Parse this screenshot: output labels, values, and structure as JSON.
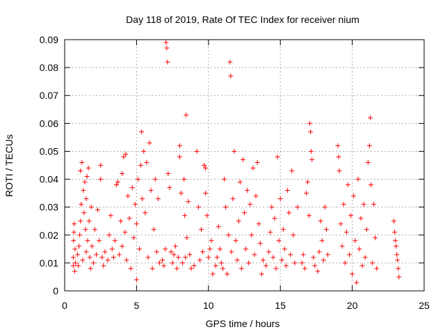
{
  "chart_data": {
    "type": "scatter",
    "title": "Day 118 of 2019, Rate Of TEC Index for receiver nium",
    "xlabel": "GPS time / hours",
    "ylabel": "ROTI / TECUs",
    "xlim": [
      0,
      25
    ],
    "ylim": [
      0,
      0.09
    ],
    "xticks": [
      0,
      5,
      10,
      15,
      20,
      25
    ],
    "xtick_labels": [
      "0",
      "5",
      "10",
      "15",
      "20",
      "25"
    ],
    "yticks": [
      0,
      0.01,
      0.02,
      0.03,
      0.04,
      0.05,
      0.06,
      0.07,
      0.08,
      0.09
    ],
    "ytick_labels": [
      "0",
      "0.01",
      "0.02",
      "0.03",
      "0.04",
      "0.05",
      "0.06",
      "0.07",
      "0.08",
      "0.09"
    ],
    "grid": true,
    "marker": "+",
    "color": "#ff0000",
    "points": [
      [
        0.6,
        0.009
      ],
      [
        0.6,
        0.012
      ],
      [
        0.62,
        0.018
      ],
      [
        0.64,
        0.021
      ],
      [
        0.66,
        0.024
      ],
      [
        0.7,
        0.007
      ],
      [
        0.72,
        0.015
      ],
      [
        0.75,
        0.01
      ],
      [
        0.9,
        0.013
      ],
      [
        0.95,
        0.009
      ],
      [
        1.0,
        0.016
      ],
      [
        1.05,
        0.02
      ],
      [
        1.1,
        0.025
      ],
      [
        1.1,
        0.043
      ],
      [
        1.15,
        0.031
      ],
      [
        1.2,
        0.046
      ],
      [
        1.25,
        0.011
      ],
      [
        1.3,
        0.036
      ],
      [
        1.35,
        0.028
      ],
      [
        1.4,
        0.039
      ],
      [
        1.45,
        0.022
      ],
      [
        1.5,
        0.033
      ],
      [
        1.5,
        0.014
      ],
      [
        1.55,
        0.041
      ],
      [
        1.6,
        0.018
      ],
      [
        1.65,
        0.044
      ],
      [
        1.7,
        0.025
      ],
      [
        1.75,
        0.012
      ],
      [
        1.8,
        0.008
      ],
      [
        1.85,
        0.03
      ],
      [
        1.9,
        0.016
      ],
      [
        2.0,
        0.01
      ],
      [
        2.1,
        0.022
      ],
      [
        2.2,
        0.013
      ],
      [
        2.3,
        0.029
      ],
      [
        2.4,
        0.018
      ],
      [
        2.5,
        0.04
      ],
      [
        2.5,
        0.045
      ],
      [
        2.6,
        0.012
      ],
      [
        2.7,
        0.009
      ],
      [
        2.8,
        0.014
      ],
      [
        3.0,
        0.011
      ],
      [
        3.1,
        0.02
      ],
      [
        3.2,
        0.027
      ],
      [
        3.3,
        0.015
      ],
      [
        3.4,
        0.012
      ],
      [
        3.5,
        0.018
      ],
      [
        3.6,
        0.038
      ],
      [
        3.7,
        0.039
      ],
      [
        3.8,
        0.013
      ],
      [
        3.9,
        0.025
      ],
      [
        4.0,
        0.042
      ],
      [
        4.0,
        0.016
      ],
      [
        4.1,
        0.048
      ],
      [
        4.2,
        0.021
      ],
      [
        4.25,
        0.049
      ],
      [
        4.3,
        0.011
      ],
      [
        4.4,
        0.034
      ],
      [
        4.5,
        0.026
      ],
      [
        4.6,
        0.008
      ],
      [
        4.7,
        0.037
      ],
      [
        4.8,
        0.019
      ],
      [
        4.9,
        0.031
      ],
      [
        5.0,
        0.004
      ],
      [
        5.0,
        0.024
      ],
      [
        5.1,
        0.04
      ],
      [
        5.2,
        0.015
      ],
      [
        5.3,
        0.045
      ],
      [
        5.35,
        0.057
      ],
      [
        5.4,
        0.033
      ],
      [
        5.5,
        0.05
      ],
      [
        5.6,
        0.028
      ],
      [
        5.7,
        0.046
      ],
      [
        5.8,
        0.012
      ],
      [
        5.9,
        0.053
      ],
      [
        6.0,
        0.036
      ],
      [
        6.1,
        0.008
      ],
      [
        6.2,
        0.022
      ],
      [
        6.3,
        0.04
      ],
      [
        6.4,
        0.014
      ],
      [
        6.5,
        0.033
      ],
      [
        6.6,
        0.01
      ],
      [
        6.8,
        0.011
      ],
      [
        6.9,
        0.009
      ],
      [
        7.0,
        0.015
      ],
      [
        7.05,
        0.089
      ],
      [
        7.1,
        0.087
      ],
      [
        7.15,
        0.082
      ],
      [
        7.2,
        0.042
      ],
      [
        7.3,
        0.037
      ],
      [
        7.4,
        0.014
      ],
      [
        7.5,
        0.01
      ],
      [
        7.6,
        0.013
      ],
      [
        7.7,
        0.016
      ],
      [
        7.8,
        0.008
      ],
      [
        7.9,
        0.012
      ],
      [
        8.0,
        0.048
      ],
      [
        8.0,
        0.052
      ],
      [
        8.1,
        0.035
      ],
      [
        8.2,
        0.01
      ],
      [
        8.3,
        0.04
      ],
      [
        8.35,
        0.027
      ],
      [
        8.4,
        0.012
      ],
      [
        8.45,
        0.063
      ],
      [
        8.5,
        0.019
      ],
      [
        8.6,
        0.032
      ],
      [
        8.7,
        0.013
      ],
      [
        8.8,
        0.008
      ],
      [
        9.0,
        0.009
      ],
      [
        9.2,
        0.05
      ],
      [
        9.3,
        0.03
      ],
      [
        9.4,
        0.011
      ],
      [
        9.5,
        0.022
      ],
      [
        9.6,
        0.014
      ],
      [
        9.7,
        0.045
      ],
      [
        9.8,
        0.044
      ],
      [
        9.8,
        0.035
      ],
      [
        9.9,
        0.027
      ],
      [
        10.0,
        0.012
      ],
      [
        10.1,
        0.015
      ],
      [
        10.2,
        0.018
      ],
      [
        10.3,
        0.006
      ],
      [
        10.5,
        0.009
      ],
      [
        10.6,
        0.012
      ],
      [
        10.7,
        0.023
      ],
      [
        10.8,
        0.015
      ],
      [
        10.9,
        0.01
      ],
      [
        11.0,
        0.008
      ],
      [
        11.1,
        0.04
      ],
      [
        11.2,
        0.03
      ],
      [
        11.3,
        0.006
      ],
      [
        11.4,
        0.02
      ],
      [
        11.5,
        0.082
      ],
      [
        11.55,
        0.077
      ],
      [
        11.6,
        0.014
      ],
      [
        11.7,
        0.033
      ],
      [
        11.8,
        0.05
      ],
      [
        11.9,
        0.018
      ],
      [
        12.0,
        0.011
      ],
      [
        12.1,
        0.025
      ],
      [
        12.2,
        0.039
      ],
      [
        12.3,
        0.008
      ],
      [
        12.4,
        0.047
      ],
      [
        12.5,
        0.028
      ],
      [
        12.6,
        0.015
      ],
      [
        12.7,
        0.036
      ],
      [
        12.8,
        0.01
      ],
      [
        12.9,
        0.031
      ],
      [
        13.0,
        0.02
      ],
      [
        13.1,
        0.044
      ],
      [
        13.2,
        0.013
      ],
      [
        13.3,
        0.034
      ],
      [
        13.4,
        0.046
      ],
      [
        13.5,
        0.024
      ],
      [
        13.6,
        0.017
      ],
      [
        13.7,
        0.006
      ],
      [
        13.8,
        0.011
      ],
      [
        14.0,
        0.009
      ],
      [
        14.2,
        0.014
      ],
      [
        14.3,
        0.021
      ],
      [
        14.4,
        0.03
      ],
      [
        14.5,
        0.012
      ],
      [
        14.6,
        0.026
      ],
      [
        14.7,
        0.008
      ],
      [
        14.8,
        0.048
      ],
      [
        14.9,
        0.018
      ],
      [
        15.0,
        0.033
      ],
      [
        15.1,
        0.011
      ],
      [
        15.2,
        0.022
      ],
      [
        15.3,
        0.015
      ],
      [
        15.4,
        0.009
      ],
      [
        15.5,
        0.036
      ],
      [
        15.6,
        0.028
      ],
      [
        15.7,
        0.013
      ],
      [
        15.8,
        0.043
      ],
      [
        15.9,
        0.02
      ],
      [
        16.0,
        0.01
      ],
      [
        16.2,
        0.03
      ],
      [
        16.5,
        0.01
      ],
      [
        16.6,
        0.013
      ],
      [
        16.7,
        0.008
      ],
      [
        16.8,
        0.035
      ],
      [
        16.9,
        0.039
      ],
      [
        17.0,
        0.027
      ],
      [
        17.05,
        0.06
      ],
      [
        17.1,
        0.057
      ],
      [
        17.15,
        0.05
      ],
      [
        17.2,
        0.047
      ],
      [
        17.3,
        0.012
      ],
      [
        17.4,
        0.009
      ],
      [
        17.6,
        0.007
      ],
      [
        17.7,
        0.014
      ],
      [
        17.8,
        0.025
      ],
      [
        17.9,
        0.018
      ],
      [
        18.0,
        0.011
      ],
      [
        18.1,
        0.03
      ],
      [
        18.2,
        0.022
      ],
      [
        18.3,
        0.013
      ],
      [
        19.0,
        0.052
      ],
      [
        19.05,
        0.048
      ],
      [
        19.1,
        0.043
      ],
      [
        19.2,
        0.024
      ],
      [
        19.3,
        0.016
      ],
      [
        19.4,
        0.031
      ],
      [
        19.5,
        0.01
      ],
      [
        19.6,
        0.021
      ],
      [
        19.7,
        0.038
      ],
      [
        19.8,
        0.013
      ],
      [
        19.9,
        0.027
      ],
      [
        20.0,
        0.006
      ],
      [
        20.1,
        0.034
      ],
      [
        20.2,
        0.018
      ],
      [
        20.3,
        0.003
      ],
      [
        20.4,
        0.04
      ],
      [
        20.5,
        0.015
      ],
      [
        20.6,
        0.026
      ],
      [
        20.7,
        0.009
      ],
      [
        20.8,
        0.031
      ],
      [
        20.9,
        0.012
      ],
      [
        21.0,
        0.022
      ],
      [
        21.1,
        0.046
      ],
      [
        21.2,
        0.052
      ],
      [
        21.25,
        0.062
      ],
      [
        21.3,
        0.038
      ],
      [
        21.4,
        0.01
      ],
      [
        21.5,
        0.031
      ],
      [
        21.6,
        0.019
      ],
      [
        21.7,
        0.008
      ],
      [
        22.9,
        0.025
      ],
      [
        22.95,
        0.021
      ],
      [
        23.0,
        0.018
      ],
      [
        23.05,
        0.016
      ],
      [
        23.1,
        0.013
      ],
      [
        23.15,
        0.011
      ],
      [
        23.2,
        0.008
      ],
      [
        23.25,
        0.005
      ]
    ]
  }
}
